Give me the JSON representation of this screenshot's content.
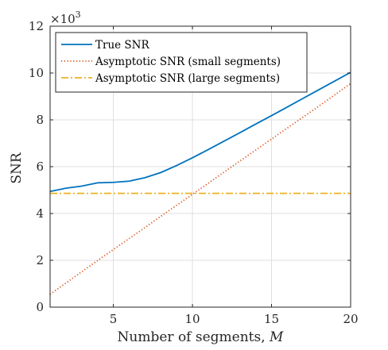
{
  "chart_data": {
    "type": "line",
    "xlabel": "Number of segments, ",
    "xlabel_var": "M",
    "ylabel": "SNR",
    "y_multiplier": {
      "base": "×10",
      "exponent": "3"
    },
    "xlim": [
      1,
      20
    ],
    "ylim": [
      0,
      12
    ],
    "xticks": [
      5,
      10,
      15,
      20
    ],
    "yticks": [
      0,
      2,
      4,
      6,
      8,
      10,
      12
    ],
    "grid": true,
    "legend_position": "top-left",
    "x": [
      1,
      2,
      3,
      4,
      5,
      6,
      7,
      8,
      9,
      10,
      11,
      12,
      13,
      14,
      15,
      16,
      17,
      18,
      19,
      20
    ],
    "series": [
      {
        "name": "True SNR",
        "color": "#0072BD",
        "style": "solid",
        "values": [
          4.94,
          5.08,
          5.17,
          5.31,
          5.33,
          5.38,
          5.53,
          5.75,
          6.05,
          6.38,
          6.73,
          7.09,
          7.45,
          7.82,
          8.18,
          8.55,
          8.92,
          9.29,
          9.66,
          10.03
        ]
      },
      {
        "name": "Asymptotic SNR (small segments)",
        "color": "#D95319",
        "style": "dotted",
        "values": [
          0.55,
          1.03,
          1.51,
          1.99,
          2.46,
          2.93,
          3.4,
          3.88,
          4.35,
          4.82,
          5.29,
          5.77,
          6.24,
          6.71,
          7.18,
          7.65,
          8.12,
          8.59,
          9.07,
          9.55
        ]
      },
      {
        "name": "Asymptotic SNR (large segments)",
        "color": "#EDB120",
        "style": "dashdot",
        "values": [
          4.86,
          4.86,
          4.86,
          4.86,
          4.86,
          4.86,
          4.86,
          4.86,
          4.86,
          4.86,
          4.86,
          4.86,
          4.86,
          4.86,
          4.86,
          4.86,
          4.86,
          4.86,
          4.86,
          4.86
        ]
      }
    ]
  }
}
